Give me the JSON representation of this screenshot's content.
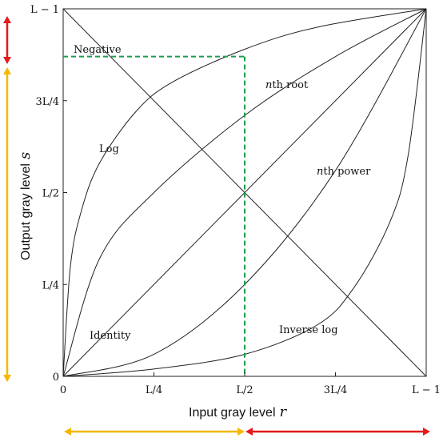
{
  "chart_data": {
    "type": "line",
    "title": "",
    "xlabel": "Input gray level",
    "xlabel_var": "r",
    "ylabel": "Output gray level",
    "ylabel_var": "s",
    "x_ticks": [
      "0",
      "L/4",
      "L/2",
      "3L/4",
      "L − 1"
    ],
    "y_ticks": [
      "0",
      "L/4",
      "L/2",
      "3L/4",
      "L − 1"
    ],
    "xlim": [
      0,
      1
    ],
    "ylim": [
      0,
      1
    ],
    "grid": false,
    "series": [
      {
        "name": "Negative",
        "label_text": "Negative",
        "x": [
          0,
          1
        ],
        "y": [
          1,
          0
        ]
      },
      {
        "name": "Log",
        "label_text": "Log",
        "x": [
          0,
          0.02,
          0.05,
          0.1,
          0.2,
          0.3,
          0.5,
          0.7,
          1
        ],
        "y": [
          0,
          0.3,
          0.45,
          0.58,
          0.72,
          0.8,
          0.89,
          0.95,
          1
        ]
      },
      {
        "name": "nth root",
        "label_text": "nth root",
        "x": [
          0,
          0.1,
          0.25,
          0.5,
          0.75,
          1
        ],
        "y": [
          0,
          0.32,
          0.5,
          0.71,
          0.87,
          1
        ]
      },
      {
        "name": "Identity",
        "label_text": "Identity",
        "x": [
          0,
          1
        ],
        "y": [
          0,
          1
        ]
      },
      {
        "name": "nth power",
        "label_text": "nth power",
        "x": [
          0,
          0.25,
          0.5,
          0.75,
          1
        ],
        "y": [
          0,
          0.06,
          0.25,
          0.56,
          1
        ]
      },
      {
        "name": "Inverse log",
        "label_text": "Inverse log",
        "x": [
          0,
          0.25,
          0.5,
          0.7,
          0.8,
          0.9,
          0.95,
          1
        ],
        "y": [
          0,
          0.02,
          0.06,
          0.14,
          0.24,
          0.42,
          0.6,
          1
        ]
      }
    ],
    "highlight": {
      "x": 0.5,
      "y": 0.87,
      "color": "#1a9e4a",
      "style": "dashed"
    },
    "arrow_colors": {
      "yellow": "#f5b800",
      "red": "#e41a1c"
    }
  }
}
